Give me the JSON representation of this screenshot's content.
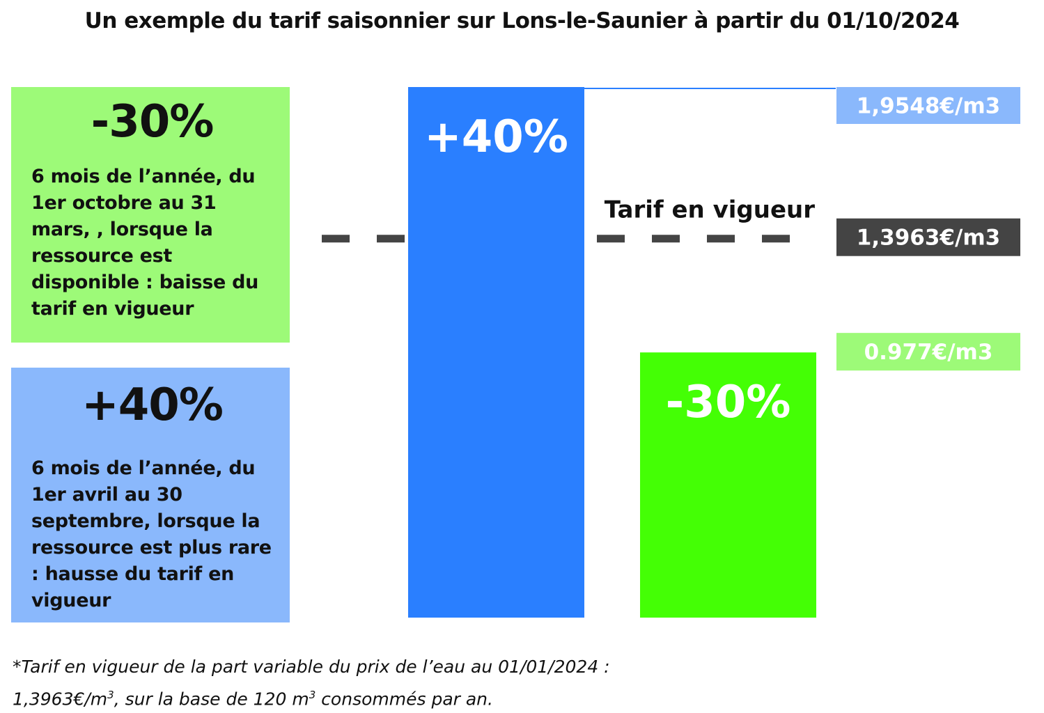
{
  "chart_data": {
    "type": "bar",
    "title": "Un exemple du tarif saisonnier sur Lons-le-Saunier à partir du 01/10/2024",
    "categories": [
      "+40%",
      "-30%"
    ],
    "values": [
      1.9548,
      0.977
    ],
    "bar_labels": [
      "+40%",
      "-30%"
    ],
    "price_labels": [
      "1,9548€/m3",
      "0.977€/m3"
    ],
    "reference": {
      "label": "Tarif en vigueur",
      "value": 1.3963,
      "value_label": "1,3963€/m3"
    },
    "ylim": [
      0,
      1.9548
    ],
    "grid": false,
    "legend": "none",
    "colors": {
      "high": "#2a7fff",
      "low": "#44ff05",
      "high_label_bg": "#8ab8fc",
      "low_label_bg": "#9dfa78",
      "reference_line": "#444444",
      "reference_label_bg": "#444444"
    }
  },
  "panels": [
    {
      "big": "-30%",
      "desc": "6 mois de l’année, du 1er octobre au 31 mars, , lorsque la ressource est disponible : baisse du tarif en vigueur"
    },
    {
      "big": "+40%",
      "desc": "6 mois de l’année, du 1er avril au 30 septembre, lorsque la ressource est plus rare : hausse du tarif en vigueur"
    }
  ],
  "footnote": {
    "line1": "*Tarif en vigueur de la part variable du prix de l’eau au 01/01/2024 :",
    "line2_a": "1,3963€/m",
    "line2_sup1": "3",
    "line2_b": ", sur la base de 120 m",
    "line2_sup2": "3",
    "line2_c": " consommés par an."
  }
}
